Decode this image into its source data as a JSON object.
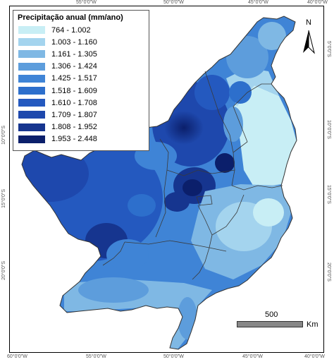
{
  "map": {
    "legend_title": "Precipitação anual (mm/ano)",
    "legend": [
      {
        "label": "764 - 1.002",
        "color": "#c8eef5"
      },
      {
        "label": "1.003 - 1.160",
        "color": "#a4d4ee"
      },
      {
        "label": "1.161 - 1.305",
        "color": "#7fb8e4"
      },
      {
        "label": "1.306 - 1.424",
        "color": "#5d9ddc"
      },
      {
        "label": "1.425 - 1.517",
        "color": "#3f84d6"
      },
      {
        "label": "1.518 - 1.609",
        "color": "#2d6fcc"
      },
      {
        "label": "1.610 - 1.708",
        "color": "#2459bf"
      },
      {
        "label": "1.709 - 1.807",
        "color": "#1e48ad"
      },
      {
        "label": "1.808 - 1.952",
        "color": "#16358f"
      },
      {
        "label": "1.953 - 2.448",
        "color": "#0b1f6b"
      }
    ],
    "north_label": "N",
    "scale_label": "500",
    "scale_unit": "Km",
    "top_ticks": [
      "55°0'0\"W",
      "50°0'0\"W",
      "45°0'0\"W",
      "40°0'0\"W"
    ],
    "bottom_ticks": [
      "60°0'0\"W",
      "55°0'0\"W",
      "50°0'0\"W",
      "45°0'0\"W",
      "40°0'0\"W"
    ],
    "right_ticks": [
      "5°0'0\"S",
      "10°0'0\"S",
      "15°0'0\"S",
      "20°0'0\"S"
    ],
    "left_ticks": [
      "10°0'0\"S",
      "15°0'0\"S",
      "20°0'0\"S"
    ]
  }
}
